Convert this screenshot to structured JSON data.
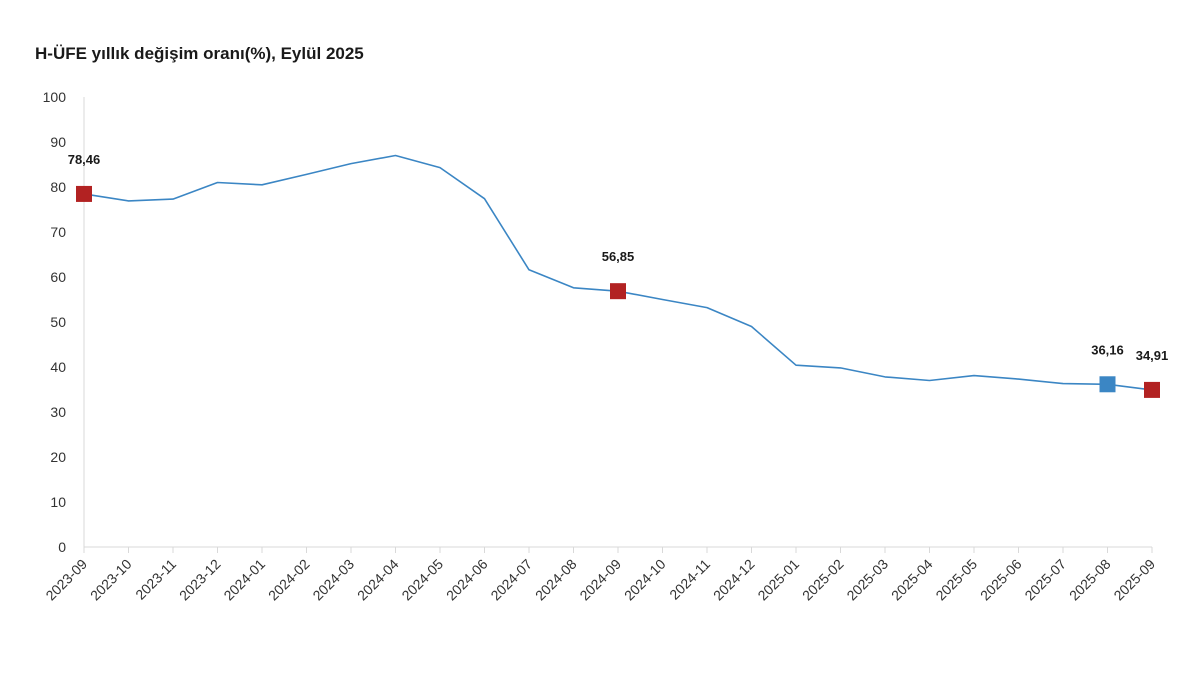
{
  "chart_data": {
    "type": "line",
    "title": "H-ÜFE yıllık değişim oranı(%), Eylül 2025",
    "xlabel": "",
    "ylabel": "",
    "ylim": [
      0,
      100
    ],
    "yticks": [
      0,
      10,
      20,
      30,
      40,
      50,
      60,
      70,
      80,
      90,
      100
    ],
    "grid": false,
    "categories": [
      "2023-09",
      "2023-10",
      "2023-11",
      "2023-12",
      "2024-01",
      "2024-02",
      "2024-03",
      "2024-04",
      "2024-05",
      "2024-06",
      "2024-07",
      "2024-08",
      "2024-09",
      "2024-10",
      "2024-11",
      "2024-12",
      "2025-01",
      "2025-02",
      "2025-03",
      "2025-04",
      "2025-05",
      "2025-06",
      "2025-07",
      "2025-08",
      "2025-09"
    ],
    "series": [
      {
        "name": "H-ÜFE",
        "color": "#3b86c4",
        "values": [
          78.46,
          76.9,
          77.3,
          81.0,
          80.5,
          82.8,
          85.2,
          87.0,
          84.3,
          77.4,
          61.6,
          57.6,
          56.85,
          55.0,
          53.2,
          49.0,
          40.4,
          39.8,
          37.8,
          37.0,
          38.1,
          37.3,
          36.3,
          36.16,
          34.91
        ]
      }
    ],
    "highlights": [
      {
        "index": 0,
        "label": "78,46",
        "color": "#b22222"
      },
      {
        "index": 12,
        "label": "56,85",
        "color": "#b22222"
      },
      {
        "index": 23,
        "label": "36,16",
        "color": "#3b86c4"
      },
      {
        "index": 24,
        "label": "34,91",
        "color": "#b22222"
      }
    ]
  }
}
